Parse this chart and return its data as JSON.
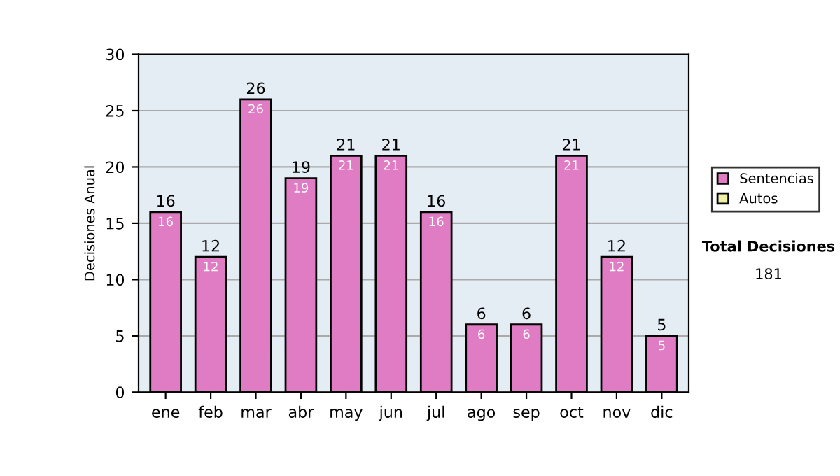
{
  "chart_data": {
    "type": "bar",
    "ylabel": "Decisiones Anual",
    "categories": [
      "ene",
      "feb",
      "mar",
      "abr",
      "may",
      "jun",
      "jul",
      "ago",
      "sep",
      "oct",
      "nov",
      "dic"
    ],
    "stacked": true,
    "series": [
      {
        "name": "Sentencias",
        "color": "#e07cc4",
        "values": [
          16,
          12,
          26,
          19,
          21,
          21,
          16,
          6,
          6,
          21,
          12,
          5
        ],
        "value_labels": [
          "16",
          "12",
          "26",
          "19",
          "21",
          "21",
          "16",
          "6",
          "6",
          "21",
          "12",
          "5"
        ]
      },
      {
        "name": "Autos",
        "color": "#f0f0a8",
        "values": [
          0,
          0,
          0,
          0,
          0,
          0,
          0,
          0,
          0,
          0,
          0,
          0
        ]
      }
    ],
    "totals": [
      "16",
      "12",
      "26",
      "19",
      "21",
      "21",
      "16",
      "6",
      "6",
      "21",
      "12",
      "5"
    ],
    "ylim": [
      0,
      30
    ],
    "yticks": [
      0,
      5,
      10,
      15,
      20,
      25,
      30
    ],
    "grid": "y",
    "legend": "right",
    "annotations": [
      "Total Decisiones",
      "181"
    ]
  }
}
